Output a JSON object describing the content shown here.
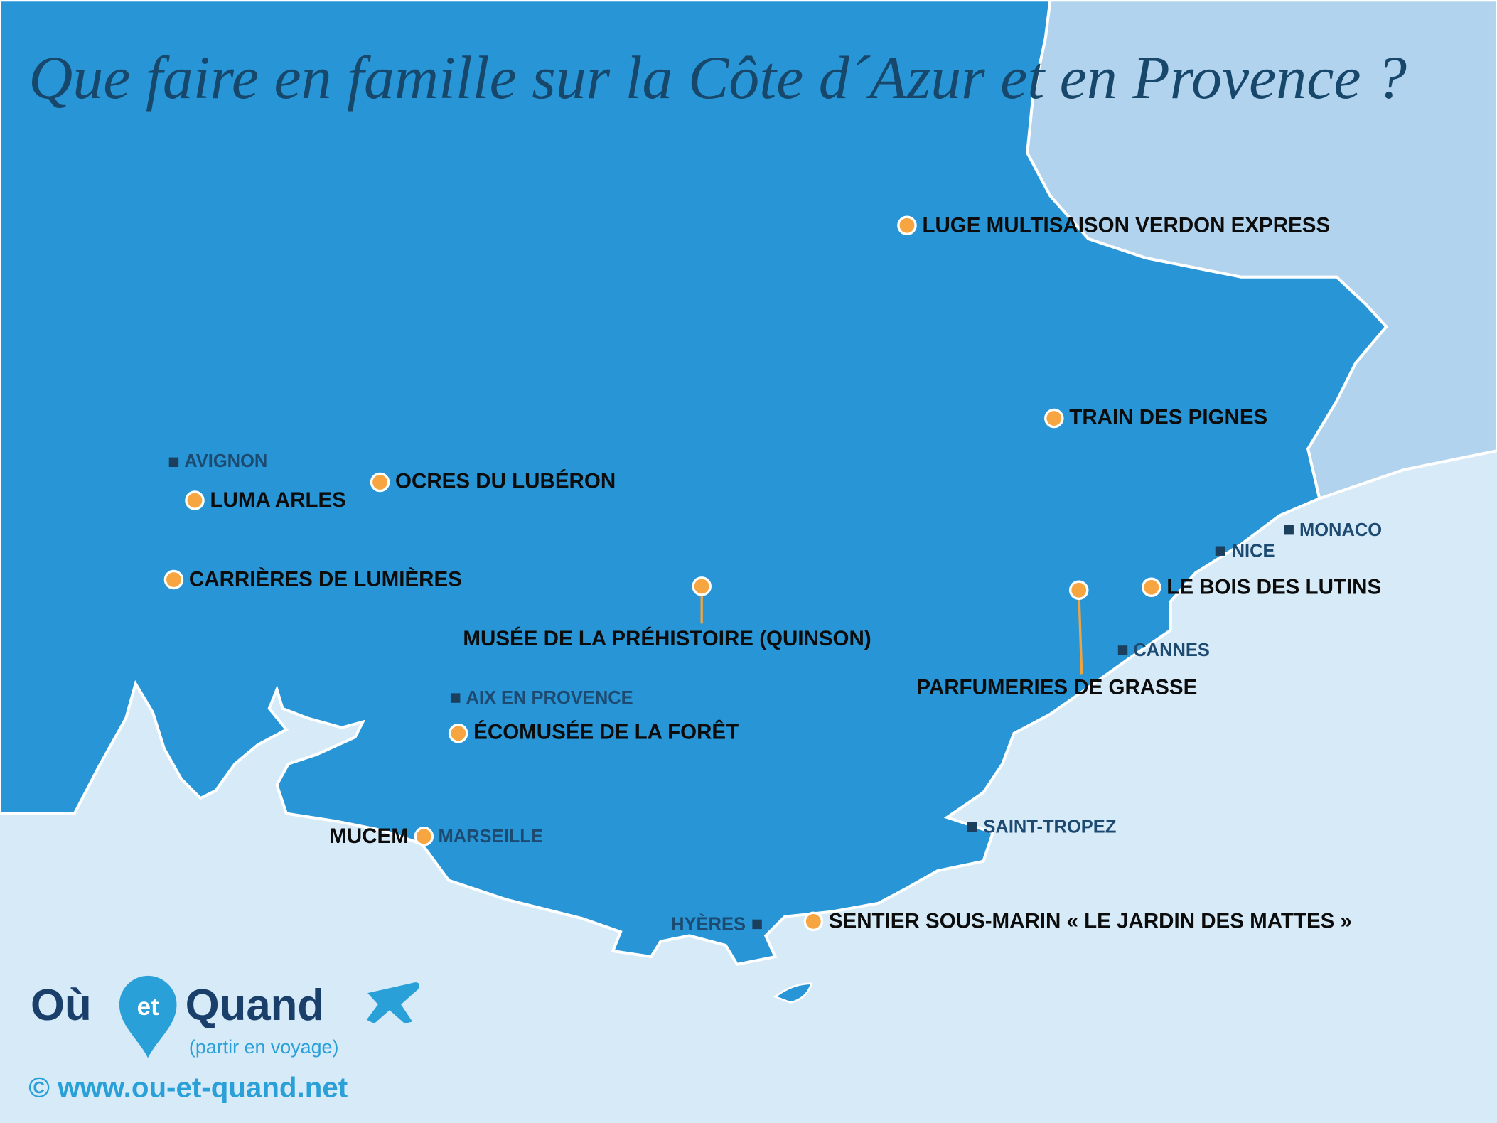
{
  "title": "Que faire en famille sur la Côte d´Azur et en Provence ?",
  "attractions": [
    {
      "label": "LUGE MULTISAISON VERDON EXPRESS"
    },
    {
      "label": "TRAIN DES PIGNES"
    },
    {
      "label": "OCRES DU LUBÉRON"
    },
    {
      "label": "LUMA ARLES"
    },
    {
      "label": "CARRIÈRES DE LUMIÈRES"
    },
    {
      "label": "MUSÉE DE LA PRÉHISTOIRE (QUINSON)"
    },
    {
      "label": "PARFUMERIES DE GRASSE"
    },
    {
      "label": "LE BOIS DES LUTINS"
    },
    {
      "label": "ÉCOMUSÉE DE LA FORÊT"
    },
    {
      "label": "MUCEM"
    },
    {
      "label": "SENTIER SOUS-MARIN « LE JARDIN DES MATTES »"
    }
  ],
  "cities": [
    {
      "label": "AVIGNON"
    },
    {
      "label": "MONACO"
    },
    {
      "label": "NICE"
    },
    {
      "label": "CANNES"
    },
    {
      "label": "AIX EN PROVENCE"
    },
    {
      "label": "MARSEILLE"
    },
    {
      "label": "SAINT-TROPEZ"
    },
    {
      "label": "HYÈRES"
    }
  ],
  "logo": {
    "brand_left": "Où",
    "brand_middle": "et",
    "brand_right": "Quand",
    "tagline": "(partir en voyage)"
  },
  "website": "© www.ou-et-quand.net"
}
